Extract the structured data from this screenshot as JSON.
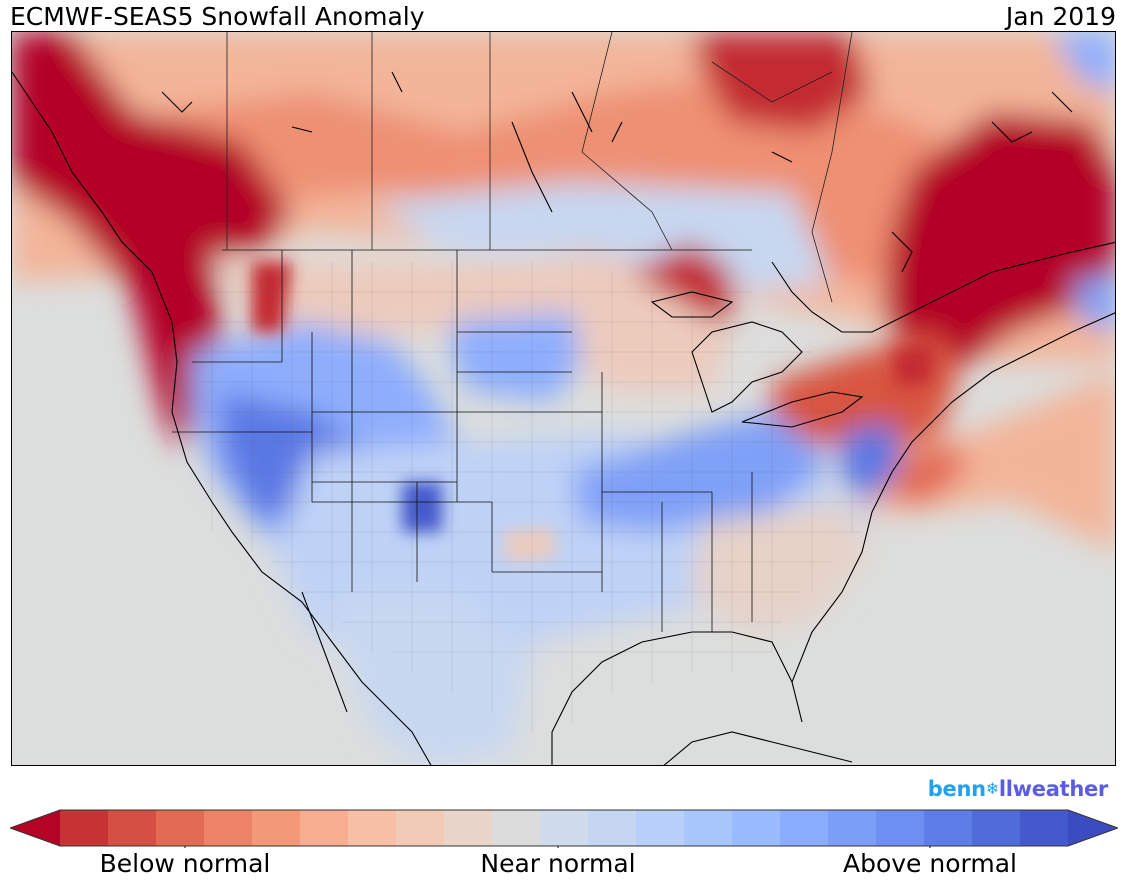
{
  "header": {
    "title": "ECMWF-SEAS5 Snowfall Anomaly",
    "period": "Jan 2019"
  },
  "brand": {
    "part1": "benn",
    "snowflake": "❄",
    "part2": "llweather"
  },
  "colorbar": {
    "colors": [
      "#b40426",
      "#c53334",
      "#d55042",
      "#e36b54",
      "#ed8366",
      "#f39977",
      "#f7ad90",
      "#f6bfa6",
      "#f2cbb7",
      "#e9d4ca",
      "#dddcdc",
      "#d0dbeb",
      "#c5d6f2",
      "#b7cff9",
      "#aac7fd",
      "#9abbff",
      "#8badfd",
      "#7b9ff9",
      "#6c8ff1",
      "#5e7de7",
      "#506bda",
      "#445acc",
      "#3b4cc0"
    ],
    "labels": [
      "Below normal",
      "Near normal",
      "Above normal"
    ]
  },
  "map": {
    "background": "#dcdedd",
    "anomaly_regions": [
      {
        "name": "pacific-northwest-canada",
        "level": "below"
      },
      {
        "name": "quebec-labrador",
        "level": "below"
      },
      {
        "name": "northern-ontario",
        "level": "below"
      },
      {
        "name": "great-lakes-northeast",
        "level": "below"
      },
      {
        "name": "great-basin-rockies",
        "level": "above"
      },
      {
        "name": "northern-plains",
        "level": "above"
      },
      {
        "name": "ohio-valley",
        "level": "above"
      },
      {
        "name": "mid-atlantic-coast",
        "level": "above"
      },
      {
        "name": "newfoundland",
        "level": "above"
      }
    ]
  }
}
